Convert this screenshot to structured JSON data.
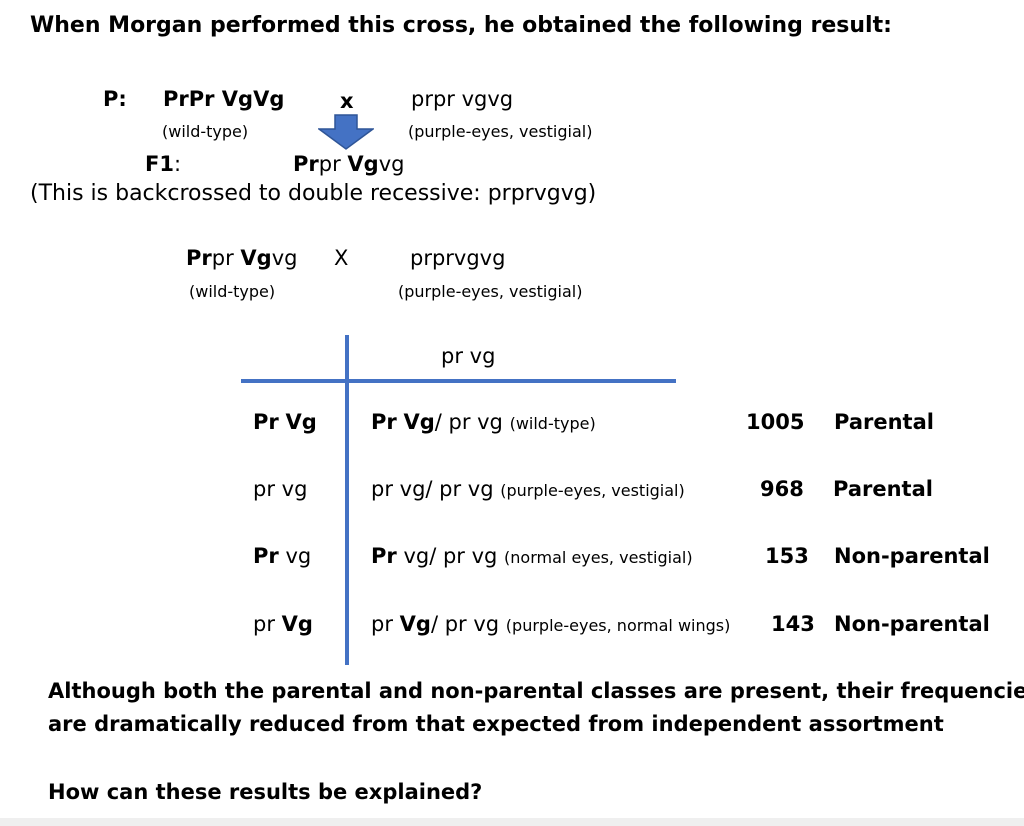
{
  "heading": "When Morgan performed this cross, he obtained the following result:",
  "p_cross": {
    "label": "P:",
    "parent1": "PrPr VgVg",
    "x": "x",
    "parent2": "prpr vgvg",
    "parent1_pheno": "(wild-type)",
    "parent2_pheno": "(purple-eyes, vestigial)"
  },
  "f1": {
    "label": "F1",
    "colon": ":",
    "geno_pr_bold": "Pr",
    "geno_pr": "pr ",
    "geno_vg_bold": "Vg",
    "geno_vg": "vg"
  },
  "backcross_note": "(This is backcrossed to double recessive: prprvgvg)",
  "test_cross": {
    "p1_pr_bold": "Pr",
    "p1_pr": "pr ",
    "p1_vg_bold": "Vg",
    "p1_vg": "vg",
    "x": "X",
    "parent2": "prprvgvg",
    "parent1_pheno": "(wild-type)",
    "parent2_pheno": "(purple-eyes, vestigial)"
  },
  "punnett": {
    "column_gamete": "pr vg",
    "rows": [
      {
        "g_a": "Pr",
        "g_a_bold": true,
        "g_b": "Vg",
        "g_b_bold": true,
        "o_a": "Pr",
        "o_a_bold": true,
        "o_b": "Vg",
        "o_b_bold": true,
        "o_rest": "/ pr vg",
        "phenotype": "(wild-type)",
        "count": "1005",
        "type": "Parental"
      },
      {
        "g_a": "pr",
        "g_a_bold": false,
        "g_b": "vg",
        "g_b_bold": false,
        "o_a": "pr",
        "o_a_bold": false,
        "o_b": "vg",
        "o_b_bold": false,
        "o_rest": "/ pr vg",
        "phenotype": "(purple-eyes, vestigial)",
        "count": "968",
        "type": "Parental"
      },
      {
        "g_a": "Pr",
        "g_a_bold": true,
        "g_b": "vg",
        "g_b_bold": false,
        "o_a": "Pr",
        "o_a_bold": true,
        "o_b": "vg",
        "o_b_bold": false,
        "o_rest": "/ pr vg",
        "phenotype": "(normal eyes, vestigial)",
        "count": "153",
        "type": "Non-parental"
      },
      {
        "g_a": "pr",
        "g_a_bold": false,
        "g_b": "Vg",
        "g_b_bold": true,
        "o_a": "pr",
        "o_a_bold": false,
        "o_b": "Vg",
        "o_b_bold": true,
        "o_rest": "/ pr vg",
        "phenotype": "(purple-eyes, normal wings)",
        "count": "143",
        "type": "Non-parental"
      }
    ]
  },
  "conclusion_line1": "Although both the parental and non-parental classes are present, their frequencies",
  "conclusion_line2": "are dramatically reduced from that expected from independent assortment",
  "question": "How can these results be explained?",
  "colors": {
    "line": "#4472c4",
    "arrow": "#4472c4",
    "arrow_border": "#2f5597"
  }
}
